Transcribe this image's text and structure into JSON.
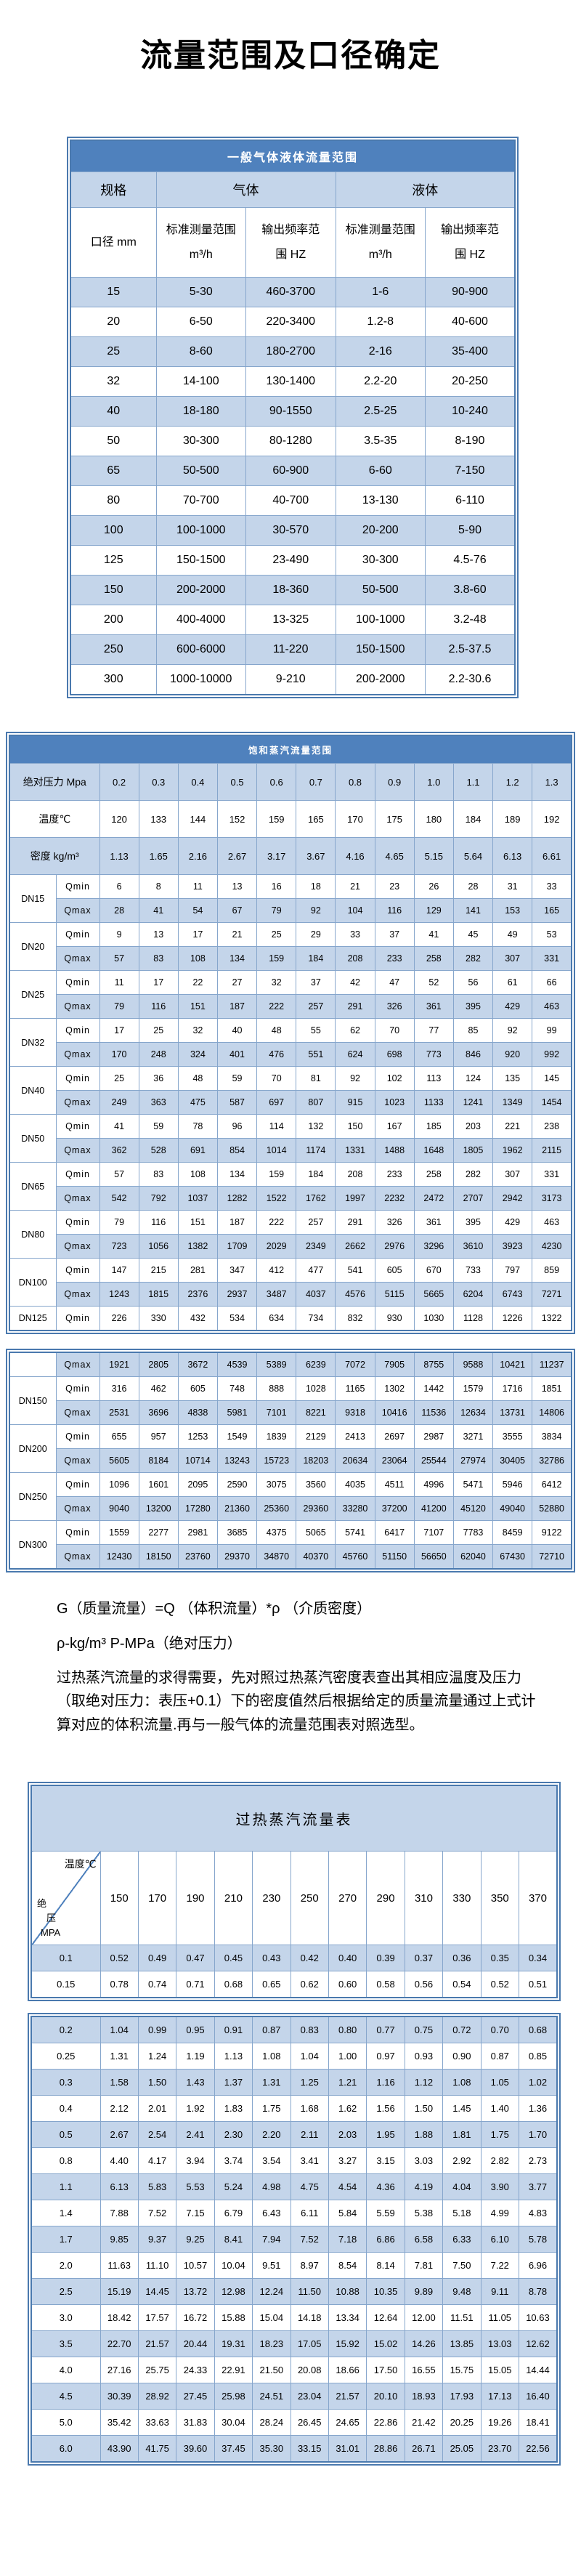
{
  "page": {
    "title": "流量范围及口径确定"
  },
  "gas_liquid_table": {
    "title": "一般气体液体流量范围",
    "header": {
      "spec": "规格",
      "gas": "气体",
      "liquid": "液体",
      "diameter": "口径 mm",
      "std_range": "标准测量范围",
      "std_unit": "m³/h",
      "freq_l1": "输出频率范",
      "freq_l2": "围 HZ"
    },
    "rows": [
      [
        "15",
        "5-30",
        "460-3700",
        "1-6",
        "90-900"
      ],
      [
        "20",
        "6-50",
        "220-3400",
        "1.2-8",
        "40-600"
      ],
      [
        "25",
        "8-60",
        "180-2700",
        "2-16",
        "35-400"
      ],
      [
        "32",
        "14-100",
        "130-1400",
        "2.2-20",
        "20-250"
      ],
      [
        "40",
        "18-180",
        "90-1550",
        "2.5-25",
        "10-240"
      ],
      [
        "50",
        "30-300",
        "80-1280",
        "3.5-35",
        "8-190"
      ],
      [
        "65",
        "50-500",
        "60-900",
        "6-60",
        "7-150"
      ],
      [
        "80",
        "70-700",
        "40-700",
        "13-130",
        "6-110"
      ],
      [
        "100",
        "100-1000",
        "30-570",
        "20-200",
        "5-90"
      ],
      [
        "125",
        "150-1500",
        "23-490",
        "30-300",
        "4.5-76"
      ],
      [
        "150",
        "200-2000",
        "18-360",
        "50-500",
        "3.8-60"
      ],
      [
        "200",
        "400-4000",
        "13-325",
        "100-1000",
        "3.2-48"
      ],
      [
        "250",
        "600-6000",
        "11-220",
        "150-1500",
        "2.5-37.5"
      ],
      [
        "300",
        "1000-10000",
        "9-210",
        "200-2000",
        "2.2-30.6"
      ]
    ]
  },
  "saturated_table": {
    "title": "饱和蒸汽流量范围",
    "pressure_label": "绝对压力 Mpa",
    "pressures": [
      "0.2",
      "0.3",
      "0.4",
      "0.5",
      "0.6",
      "0.7",
      "0.8",
      "0.9",
      "1.0",
      "1.1",
      "1.2",
      "1.3"
    ],
    "temp_label": "温度℃",
    "temps": [
      "120",
      "133",
      "144",
      "152",
      "159",
      "165",
      "170",
      "175",
      "180",
      "184",
      "189",
      "192"
    ],
    "density_label": "密度 kg/m³",
    "densities": [
      "1.13",
      "1.65",
      "2.16",
      "2.67",
      "3.17",
      "3.67",
      "4.16",
      "4.65",
      "5.15",
      "5.64",
      "6.13",
      "6.61"
    ],
    "qmin_label": "Qmin",
    "qmax_label": "Qmax",
    "block1": [
      {
        "dn": "DN15",
        "qmin": [
          "6",
          "8",
          "11",
          "13",
          "16",
          "18",
          "21",
          "23",
          "26",
          "28",
          "31",
          "33"
        ],
        "qmax": [
          "28",
          "41",
          "54",
          "67",
          "79",
          "92",
          "104",
          "116",
          "129",
          "141",
          "153",
          "165"
        ]
      },
      {
        "dn": "DN20",
        "qmin": [
          "9",
          "13",
          "17",
          "21",
          "25",
          "29",
          "33",
          "37",
          "41",
          "45",
          "49",
          "53"
        ],
        "qmax": [
          "57",
          "83",
          "108",
          "134",
          "159",
          "184",
          "208",
          "233",
          "258",
          "282",
          "307",
          "331"
        ]
      },
      {
        "dn": "DN25",
        "qmin": [
          "11",
          "17",
          "22",
          "27",
          "32",
          "37",
          "42",
          "47",
          "52",
          "56",
          "61",
          "66"
        ],
        "qmax": [
          "79",
          "116",
          "151",
          "187",
          "222",
          "257",
          "291",
          "326",
          "361",
          "395",
          "429",
          "463"
        ]
      },
      {
        "dn": "DN32",
        "qmin": [
          "17",
          "25",
          "32",
          "40",
          "48",
          "55",
          "62",
          "70",
          "77",
          "85",
          "92",
          "99"
        ],
        "qmax": [
          "170",
          "248",
          "324",
          "401",
          "476",
          "551",
          "624",
          "698",
          "773",
          "846",
          "920",
          "992"
        ]
      },
      {
        "dn": "DN40",
        "qmin": [
          "25",
          "36",
          "48",
          "59",
          "70",
          "81",
          "92",
          "102",
          "113",
          "124",
          "135",
          "145"
        ],
        "qmax": [
          "249",
          "363",
          "475",
          "587",
          "697",
          "807",
          "915",
          "1023",
          "1133",
          "1241",
          "1349",
          "1454"
        ]
      },
      {
        "dn": "DN50",
        "qmin": [
          "41",
          "59",
          "78",
          "96",
          "114",
          "132",
          "150",
          "167",
          "185",
          "203",
          "221",
          "238"
        ],
        "qmax": [
          "362",
          "528",
          "691",
          "854",
          "1014",
          "1174",
          "1331",
          "1488",
          "1648",
          "1805",
          "1962",
          "2115"
        ]
      },
      {
        "dn": "DN65",
        "qmin": [
          "57",
          "83",
          "108",
          "134",
          "159",
          "184",
          "208",
          "233",
          "258",
          "282",
          "307",
          "331"
        ],
        "qmax": [
          "542",
          "792",
          "1037",
          "1282",
          "1522",
          "1762",
          "1997",
          "2232",
          "2472",
          "2707",
          "2942",
          "3173"
        ]
      },
      {
        "dn": "DN80",
        "qmin": [
          "79",
          "116",
          "151",
          "187",
          "222",
          "257",
          "291",
          "326",
          "361",
          "395",
          "429",
          "463"
        ],
        "qmax": [
          "723",
          "1056",
          "1382",
          "1709",
          "2029",
          "2349",
          "2662",
          "2976",
          "3296",
          "3610",
          "3923",
          "4230"
        ]
      },
      {
        "dn": "DN100",
        "qmin": [
          "147",
          "215",
          "281",
          "347",
          "412",
          "477",
          "541",
          "605",
          "670",
          "733",
          "797",
          "859"
        ],
        "qmax": [
          "1243",
          "1815",
          "2376",
          "2937",
          "3487",
          "4037",
          "4576",
          "5115",
          "5665",
          "6204",
          "6743",
          "7271"
        ]
      },
      {
        "dn": "DN125",
        "qmin": [
          "226",
          "330",
          "432",
          "534",
          "634",
          "734",
          "832",
          "930",
          "1030",
          "1128",
          "1226",
          "1322"
        ]
      }
    ],
    "block2": {
      "orphan_qmax": [
        "1921",
        "2805",
        "3672",
        "4539",
        "5389",
        "6239",
        "7072",
        "7905",
        "8755",
        "9588",
        "10421",
        "11237"
      ],
      "rows": [
        {
          "dn": "DN150",
          "qmin": [
            "316",
            "462",
            "605",
            "748",
            "888",
            "1028",
            "1165",
            "1302",
            "1442",
            "1579",
            "1716",
            "1851"
          ],
          "qmax": [
            "2531",
            "3696",
            "4838",
            "5981",
            "7101",
            "8221",
            "9318",
            "10416",
            "11536",
            "12634",
            "13731",
            "14806"
          ]
        },
        {
          "dn": "DN200",
          "qmin": [
            "655",
            "957",
            "1253",
            "1549",
            "1839",
            "2129",
            "2413",
            "2697",
            "2987",
            "3271",
            "3555",
            "3834"
          ],
          "qmax": [
            "5605",
            "8184",
            "10714",
            "13243",
            "15723",
            "18203",
            "20634",
            "23064",
            "25544",
            "27974",
            "30405",
            "32786"
          ]
        },
        {
          "dn": "DN250",
          "qmin": [
            "1096",
            "1601",
            "2095",
            "2590",
            "3075",
            "3560",
            "4035",
            "4511",
            "4996",
            "5471",
            "5946",
            "6412"
          ],
          "qmax": [
            "9040",
            "13200",
            "17280",
            "21360",
            "25360",
            "29360",
            "33280",
            "37200",
            "41200",
            "45120",
            "49040",
            "52880"
          ]
        },
        {
          "dn": "DN300",
          "qmin": [
            "1559",
            "2277",
            "2981",
            "3685",
            "4375",
            "5065",
            "5741",
            "6417",
            "7107",
            "7783",
            "8459",
            "9122"
          ],
          "qmax": [
            "12430",
            "18150",
            "23760",
            "29370",
            "34870",
            "40370",
            "45760",
            "51150",
            "56650",
            "62040",
            "67430",
            "72710"
          ]
        }
      ]
    }
  },
  "notes": [
    "G（质量流量）=Q （体积流量）*ρ （介质密度）",
    "ρ-kg/m³ P-MPa（绝对压力）",
    "过热蒸汽流量的求得需要，先对照过热蒸汽密度表查出其相应温度及压力（取绝对压力：表压+0.1）下的密度值然后根据给定的质量流量通过上式计算对应的体积流量.再与一般气体的流量范围表对照选型。"
  ],
  "superheated_table": {
    "title": "过热蒸汽流量表",
    "corner": {
      "top": "温度℃",
      "p1": "绝",
      "p2": "压",
      "p3": "MPA"
    },
    "temps": [
      "150",
      "170",
      "190",
      "210",
      "230",
      "250",
      "270",
      "290",
      "310",
      "330",
      "350",
      "370"
    ],
    "block1": [
      {
        "p": "0.1",
        "v": [
          "0.52",
          "0.49",
          "0.47",
          "0.45",
          "0.43",
          "0.42",
          "0.40",
          "0.39",
          "0.37",
          "0.36",
          "0.35",
          "0.34"
        ]
      },
      {
        "p": "0.15",
        "v": [
          "0.78",
          "0.74",
          "0.71",
          "0.68",
          "0.65",
          "0.62",
          "0.60",
          "0.58",
          "0.56",
          "0.54",
          "0.52",
          "0.51"
        ]
      }
    ],
    "block2": [
      {
        "p": "0.2",
        "v": [
          "1.04",
          "0.99",
          "0.95",
          "0.91",
          "0.87",
          "0.83",
          "0.80",
          "0.77",
          "0.75",
          "0.72",
          "0.70",
          "0.68"
        ]
      },
      {
        "p": "0.25",
        "v": [
          "1.31",
          "1.24",
          "1.19",
          "1.13",
          "1.08",
          "1.04",
          "1.00",
          "0.97",
          "0.93",
          "0.90",
          "0.87",
          "0.85"
        ]
      },
      {
        "p": "0.3",
        "v": [
          "1.58",
          "1.50",
          "1.43",
          "1.37",
          "1.31",
          "1.25",
          "1.21",
          "1.16",
          "1.12",
          "1.08",
          "1.05",
          "1.02"
        ]
      },
      {
        "p": "0.4",
        "v": [
          "2.12",
          "2.01",
          "1.92",
          "1.83",
          "1.75",
          "1.68",
          "1.62",
          "1.56",
          "1.50",
          "1.45",
          "1.40",
          "1.36"
        ]
      },
      {
        "p": "0.5",
        "v": [
          "2.67",
          "2.54",
          "2.41",
          "2.30",
          "2.20",
          "2.11",
          "2.03",
          "1.95",
          "1.88",
          "1.81",
          "1.75",
          "1.70"
        ]
      },
      {
        "p": "0.8",
        "v": [
          "4.40",
          "4.17",
          "3.94",
          "3.74",
          "3.54",
          "3.41",
          "3.27",
          "3.15",
          "3.03",
          "2.92",
          "2.82",
          "2.73"
        ]
      },
      {
        "p": "1.1",
        "v": [
          "6.13",
          "5.83",
          "5.53",
          "5.24",
          "4.98",
          "4.75",
          "4.54",
          "4.36",
          "4.19",
          "4.04",
          "3.90",
          "3.77"
        ]
      },
      {
        "p": "1.4",
        "v": [
          "7.88",
          "7.52",
          "7.15",
          "6.79",
          "6.43",
          "6.11",
          "5.84",
          "5.59",
          "5.38",
          "5.18",
          "4.99",
          "4.83"
        ]
      },
      {
        "p": "1.7",
        "v": [
          "9.85",
          "9.37",
          "9.25",
          "8.41",
          "7.94",
          "7.52",
          "7.18",
          "6.86",
          "6.58",
          "6.33",
          "6.10",
          "5.78"
        ]
      },
      {
        "p": "2.0",
        "v": [
          "11.63",
          "11.10",
          "10.57",
          "10.04",
          "9.51",
          "8.97",
          "8.54",
          "8.14",
          "7.81",
          "7.50",
          "7.22",
          "6.96"
        ]
      },
      {
        "p": "2.5",
        "v": [
          "15.19",
          "14.45",
          "13.72",
          "12.98",
          "12.24",
          "11.50",
          "10.88",
          "10.35",
          "9.89",
          "9.48",
          "9.11",
          "8.78"
        ]
      },
      {
        "p": "3.0",
        "v": [
          "18.42",
          "17.57",
          "16.72",
          "15.88",
          "15.04",
          "14.18",
          "13.34",
          "12.64",
          "12.00",
          "11.51",
          "11.05",
          "10.63"
        ]
      },
      {
        "p": "3.5",
        "v": [
          "22.70",
          "21.57",
          "20.44",
          "19.31",
          "18.23",
          "17.05",
          "15.92",
          "15.02",
          "14.26",
          "13.85",
          "13.03",
          "12.62"
        ]
      },
      {
        "p": "4.0",
        "v": [
          "27.16",
          "25.75",
          "24.33",
          "22.91",
          "21.50",
          "20.08",
          "18.66",
          "17.50",
          "16.55",
          "15.75",
          "15.05",
          "14.44"
        ]
      },
      {
        "p": "4.5",
        "v": [
          "30.39",
          "28.92",
          "27.45",
          "25.98",
          "24.51",
          "23.04",
          "21.57",
          "20.10",
          "18.93",
          "17.93",
          "17.13",
          "16.40"
        ]
      },
      {
        "p": "5.0",
        "v": [
          "35.42",
          "33.63",
          "31.83",
          "30.04",
          "28.24",
          "26.45",
          "24.65",
          "22.86",
          "21.42",
          "20.25",
          "19.26",
          "18.41"
        ]
      },
      {
        "p": "6.0",
        "v": [
          "43.90",
          "41.75",
          "39.60",
          "37.45",
          "35.30",
          "33.15",
          "31.01",
          "28.86",
          "26.71",
          "25.05",
          "23.70",
          "22.56"
        ]
      }
    ]
  },
  "colors": {
    "header_blue": "#4f81bd",
    "row_light_blue": "#c4d5ea",
    "border_blue": "#4a79ae",
    "cell_border": "#86a6cc"
  }
}
